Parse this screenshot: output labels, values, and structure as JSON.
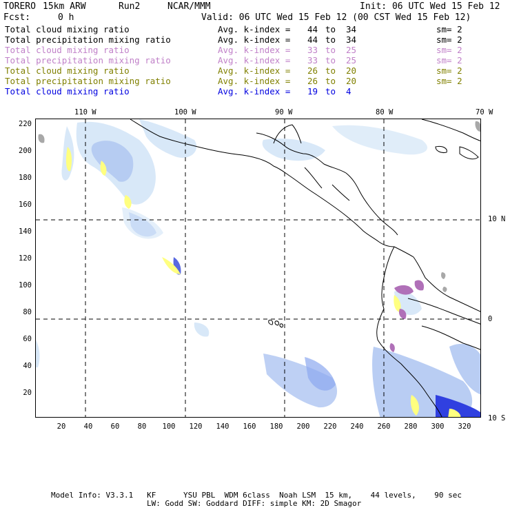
{
  "header": {
    "model": "TORERO",
    "resolution": "15km ARW",
    "run": "Run2",
    "org": "NCAR/MMM",
    "init": "Init: 06 UTC Wed 15 Feb 12",
    "fcst_label": "Fcst:",
    "fcst_value": "0 h",
    "valid": "Valid: 06 UTC Wed 15 Feb 12 (00 CST Wed 15 Feb 12)"
  },
  "legend": [
    {
      "field": "Total cloud mixing ratio",
      "avg": "Avg. k-index =",
      "from": "44",
      "to_word": "to",
      "to": "34",
      "sm": "sm= 2",
      "color": "#000000"
    },
    {
      "field": "Total precipitation mixing ratio",
      "avg": "Avg. k-index =",
      "from": "44",
      "to_word": "to",
      "to": "34",
      "sm": "sm= 2",
      "color": "#000000"
    },
    {
      "field": "Total cloud mixing ratio",
      "avg": "Avg. k-index =",
      "from": "33",
      "to_word": "to",
      "to": "25",
      "sm": "sm= 2",
      "color": "#c080c8"
    },
    {
      "field": "Total precipitation mixing ratio",
      "avg": "Avg. k-index =",
      "from": "33",
      "to_word": "to",
      "to": "25",
      "sm": "sm= 2",
      "color": "#c080c8"
    },
    {
      "field": "Total cloud mixing ratio",
      "avg": "Avg. k-index =",
      "from": "26",
      "to_word": "to",
      "to": "20",
      "sm": "sm= 2",
      "color": "#808000"
    },
    {
      "field": "Total precipitation mixing ratio",
      "avg": "Avg. k-index =",
      "from": "26",
      "to_word": "to",
      "to": "20",
      "sm": "sm= 2",
      "color": "#808000"
    },
    {
      "field": "Total cloud mixing ratio",
      "avg": "Avg. k-index =",
      "from": "19",
      "to_word": "to",
      "to": "4",
      "sm": "",
      "color": "#0000e0"
    }
  ],
  "map": {
    "longitude_labels": [
      "110 W",
      "100 W",
      "90 W",
      "80 W",
      "70 W"
    ],
    "latitude_labels": [
      "10 N",
      "0",
      "10 S"
    ],
    "x_grid_ticks": [
      "20",
      "40",
      "60",
      "80",
      "100",
      "120",
      "140",
      "160",
      "180",
      "200",
      "220",
      "240",
      "260",
      "280",
      "300",
      "320"
    ],
    "y_grid_ticks": [
      "220",
      "200",
      "180",
      "160",
      "140",
      "120",
      "100",
      "80",
      "60",
      "40",
      "20"
    ],
    "colors": {
      "cloud_light_blue": "#d8e8f8",
      "cloud_blue": "#a8c0f0",
      "cloud_dark_blue": "#3040e0",
      "precip_yellow": "#ffff80",
      "precip_purple": "#b070b8",
      "gray": "#a8a8a8"
    }
  },
  "footer": {
    "line1": "Model Info: V3.3.1   KF      YSU PBL  WDM 6class  Noah LSM  15 km,    44 levels,    90 sec",
    "line2": "LW: Godd SW: Goddard DIFF: simple KM: 2D Smagor"
  }
}
